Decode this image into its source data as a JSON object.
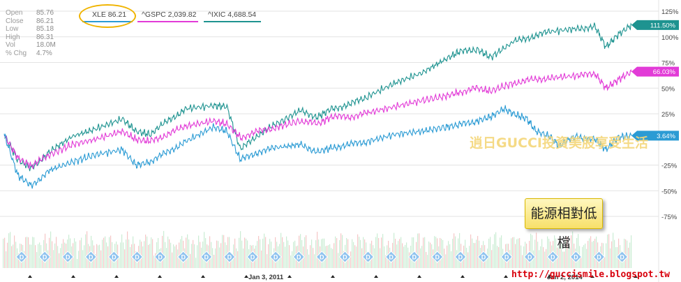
{
  "stats": [
    {
      "label": "Open",
      "value": "85.76"
    },
    {
      "label": "Close",
      "value": "86.21"
    },
    {
      "label": "Low",
      "value": "85.18"
    },
    {
      "label": "High",
      "value": "86.31"
    },
    {
      "label": "Vol",
      "value": "18.0M"
    },
    {
      "label": "% Chg",
      "value": "4.7%"
    }
  ],
  "legend": [
    {
      "label": "XLE 86.21",
      "color": "#2b9bd4"
    },
    {
      "label": "^GSPC 2,039.82",
      "color": "#e23bd7"
    },
    {
      "label": "^IXIC 4,688.54",
      "color": "#1e9390"
    }
  ],
  "watermark": "逍日GUCCI投資美股享受生活",
  "callout": "能源相對低檔",
  "url": "http://guccismile.blogspot.tw",
  "event_marker": "D",
  "chart_data": {
    "type": "line",
    "y_unit": "%",
    "ylim": [
      -75,
      125
    ],
    "y_ticks": [
      "125%",
      "100%",
      "75%",
      "50%",
      "25%",
      "-25%",
      "-50%",
      "-75%"
    ],
    "x_labels": [
      "Jan 3, 2011",
      "Jan 2, 2014"
    ],
    "series": [
      {
        "name": "^IXIC",
        "color": "#1e9390",
        "end_label": "111.50%",
        "values": [
          [
            2009.0,
            4
          ],
          [
            2009.15,
            -20
          ],
          [
            2009.3,
            -28
          ],
          [
            2009.5,
            -12
          ],
          [
            2009.75,
            3
          ],
          [
            2010.0,
            10
          ],
          [
            2010.3,
            20
          ],
          [
            2010.45,
            8
          ],
          [
            2010.6,
            5
          ],
          [
            2010.8,
            18
          ],
          [
            2011.0,
            30
          ],
          [
            2011.3,
            33
          ],
          [
            2011.45,
            32
          ],
          [
            2011.6,
            -10
          ],
          [
            2011.8,
            5
          ],
          [
            2012.0,
            15
          ],
          [
            2012.25,
            28
          ],
          [
            2012.45,
            22
          ],
          [
            2012.6,
            30
          ],
          [
            2012.8,
            34
          ],
          [
            2013.0,
            42
          ],
          [
            2013.3,
            55
          ],
          [
            2013.6,
            65
          ],
          [
            2013.85,
            78
          ],
          [
            2014.0,
            85
          ],
          [
            2014.2,
            88
          ],
          [
            2014.35,
            80
          ],
          [
            2014.6,
            95
          ],
          [
            2014.8,
            100
          ],
          [
            2015.0,
            105
          ],
          [
            2015.3,
            108
          ],
          [
            2015.5,
            110
          ],
          [
            2015.62,
            90
          ],
          [
            2015.75,
            102
          ],
          [
            2015.9,
            111.5
          ]
        ]
      },
      {
        "name": "^GSPC",
        "color": "#e23bd7",
        "end_label": "66.03%",
        "values": [
          [
            2009.0,
            4
          ],
          [
            2009.15,
            -18
          ],
          [
            2009.3,
            -26
          ],
          [
            2009.5,
            -15
          ],
          [
            2009.75,
            -5
          ],
          [
            2010.0,
            0
          ],
          [
            2010.3,
            8
          ],
          [
            2010.45,
            0
          ],
          [
            2010.6,
            -2
          ],
          [
            2010.8,
            5
          ],
          [
            2011.0,
            13
          ],
          [
            2011.3,
            18
          ],
          [
            2011.45,
            15
          ],
          [
            2011.6,
            2
          ],
          [
            2011.8,
            8
          ],
          [
            2012.0,
            12
          ],
          [
            2012.25,
            18
          ],
          [
            2012.45,
            15
          ],
          [
            2012.6,
            22
          ],
          [
            2012.8,
            22
          ],
          [
            2013.0,
            26
          ],
          [
            2013.3,
            32
          ],
          [
            2013.6,
            38
          ],
          [
            2013.85,
            42
          ],
          [
            2014.0,
            46
          ],
          [
            2014.2,
            50
          ],
          [
            2014.35,
            47
          ],
          [
            2014.6,
            55
          ],
          [
            2014.8,
            58
          ],
          [
            2015.0,
            60
          ],
          [
            2015.3,
            62
          ],
          [
            2015.5,
            64
          ],
          [
            2015.62,
            50
          ],
          [
            2015.75,
            58
          ],
          [
            2015.9,
            66.03
          ]
        ]
      },
      {
        "name": "XLE",
        "color": "#2b9bd4",
        "end_label": "3.64%",
        "values": [
          [
            2009.0,
            5
          ],
          [
            2009.15,
            -35
          ],
          [
            2009.3,
            -45
          ],
          [
            2009.5,
            -30
          ],
          [
            2009.75,
            -22
          ],
          [
            2010.0,
            -15
          ],
          [
            2010.3,
            -10
          ],
          [
            2010.45,
            -25
          ],
          [
            2010.6,
            -22
          ],
          [
            2010.8,
            -12
          ],
          [
            2011.0,
            -2
          ],
          [
            2011.3,
            12
          ],
          [
            2011.45,
            8
          ],
          [
            2011.6,
            -20
          ],
          [
            2011.8,
            -12
          ],
          [
            2012.0,
            -8
          ],
          [
            2012.25,
            -5
          ],
          [
            2012.45,
            -12
          ],
          [
            2012.6,
            -8
          ],
          [
            2012.8,
            -5
          ],
          [
            2013.0,
            -2
          ],
          [
            2013.3,
            5
          ],
          [
            2013.6,
            8
          ],
          [
            2013.85,
            12
          ],
          [
            2014.0,
            14
          ],
          [
            2014.2,
            18
          ],
          [
            2014.35,
            22
          ],
          [
            2014.5,
            30
          ],
          [
            2014.6,
            25
          ],
          [
            2014.75,
            20
          ],
          [
            2014.85,
            8
          ],
          [
            2015.0,
            3
          ],
          [
            2015.1,
            -6
          ],
          [
            2015.3,
            3
          ],
          [
            2015.5,
            0
          ],
          [
            2015.62,
            -10
          ],
          [
            2015.75,
            2
          ],
          [
            2015.9,
            3.64
          ]
        ]
      }
    ]
  }
}
